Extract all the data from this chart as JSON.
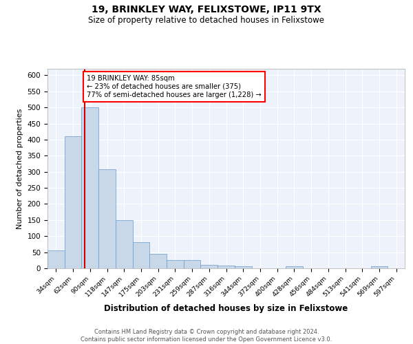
{
  "title1": "19, BRINKLEY WAY, FELIXSTOWE, IP11 9TX",
  "title2": "Size of property relative to detached houses in Felixstowe",
  "xlabel": "Distribution of detached houses by size in Felixstowe",
  "ylabel": "Number of detached properties",
  "bar_labels": [
    "34sqm",
    "62sqm",
    "90sqm",
    "118sqm",
    "147sqm",
    "175sqm",
    "203sqm",
    "231sqm",
    "259sqm",
    "287sqm",
    "316sqm",
    "344sqm",
    "372sqm",
    "400sqm",
    "428sqm",
    "456sqm",
    "484sqm",
    "513sqm",
    "541sqm",
    "569sqm",
    "597sqm"
  ],
  "bar_values": [
    55,
    410,
    500,
    307,
    150,
    82,
    45,
    25,
    25,
    11,
    8,
    7,
    0,
    0,
    6,
    0,
    0,
    0,
    0,
    6,
    0
  ],
  "bar_color": "#c8d8e8",
  "bar_edgecolor": "#6699cc",
  "property_line_bin_index": 1.67,
  "annotation_text": "19 BRINKLEY WAY: 85sqm\n← 23% of detached houses are smaller (375)\n77% of semi-detached houses are larger (1,228) →",
  "annotation_box_color": "white",
  "annotation_box_edgecolor": "red",
  "ylim": [
    0,
    620
  ],
  "yticks": [
    0,
    50,
    100,
    150,
    200,
    250,
    300,
    350,
    400,
    450,
    500,
    550,
    600
  ],
  "bg_color": "#eef2fa",
  "footer_text": "Contains HM Land Registry data © Crown copyright and database right 2024.\nContains public sector information licensed under the Open Government Licence v3.0.",
  "red_line_color": "#cc0000",
  "title1_fontsize": 10,
  "title2_fontsize": 8.5
}
